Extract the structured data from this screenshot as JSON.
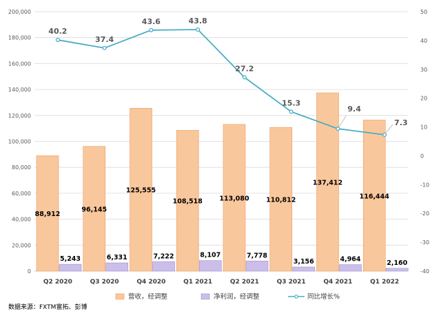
{
  "chart_data": {
    "type": "bar",
    "categories": [
      "Q2 2020",
      "Q3 2020",
      "Q4 2020",
      "Q1 2021",
      "Q2 2021",
      "Q3 2021",
      "Q4 2021",
      "Q1 2022"
    ],
    "series": [
      {
        "name": "营收，经调整",
        "kind": "bar",
        "axis": "left",
        "color": "#F9C79C",
        "values": [
          88912,
          96145,
          125555,
          108518,
          113080,
          110812,
          137412,
          116444
        ],
        "labels": [
          "88,912",
          "96,145",
          "125,555",
          "108,518",
          "113,080",
          "110,812",
          "137,412",
          "116,444"
        ]
      },
      {
        "name": "净利润，经调整",
        "kind": "bar",
        "axis": "left",
        "color": "#CBBFEA",
        "values": [
          5243,
          6331,
          7222,
          8107,
          7778,
          3156,
          4964,
          2160
        ],
        "labels": [
          "5,243",
          "6,331",
          "7,222",
          "8,107",
          "7,778",
          "3,156",
          "4,964",
          "2,160"
        ]
      },
      {
        "name": "同比增长%",
        "kind": "line",
        "axis": "right",
        "color": "#4BACC6",
        "values": [
          40.2,
          37.4,
          43.6,
          43.8,
          27.2,
          15.3,
          9.4,
          7.3
        ],
        "labels": [
          "40.2",
          "37.4",
          "43.6",
          "43.8",
          "27.2",
          "15.3",
          "9.4",
          "7.3"
        ]
      }
    ],
    "ylim_left": [
      0,
      200000
    ],
    "ylim_right": [
      -40,
      50
    ],
    "left_ticks": [
      "0",
      "20,000",
      "40,000",
      "60,000",
      "80,000",
      "100,000",
      "120,000",
      "140,000",
      "160,000",
      "180,000",
      "200,000"
    ],
    "right_ticks": [
      "-40",
      "-30",
      "-20",
      "-10",
      "0",
      "10",
      "20",
      "30",
      "40",
      "50"
    ],
    "legend_position": "bottom",
    "grid": true
  },
  "source_text": "数据来源：FXTM富拓、彭博"
}
